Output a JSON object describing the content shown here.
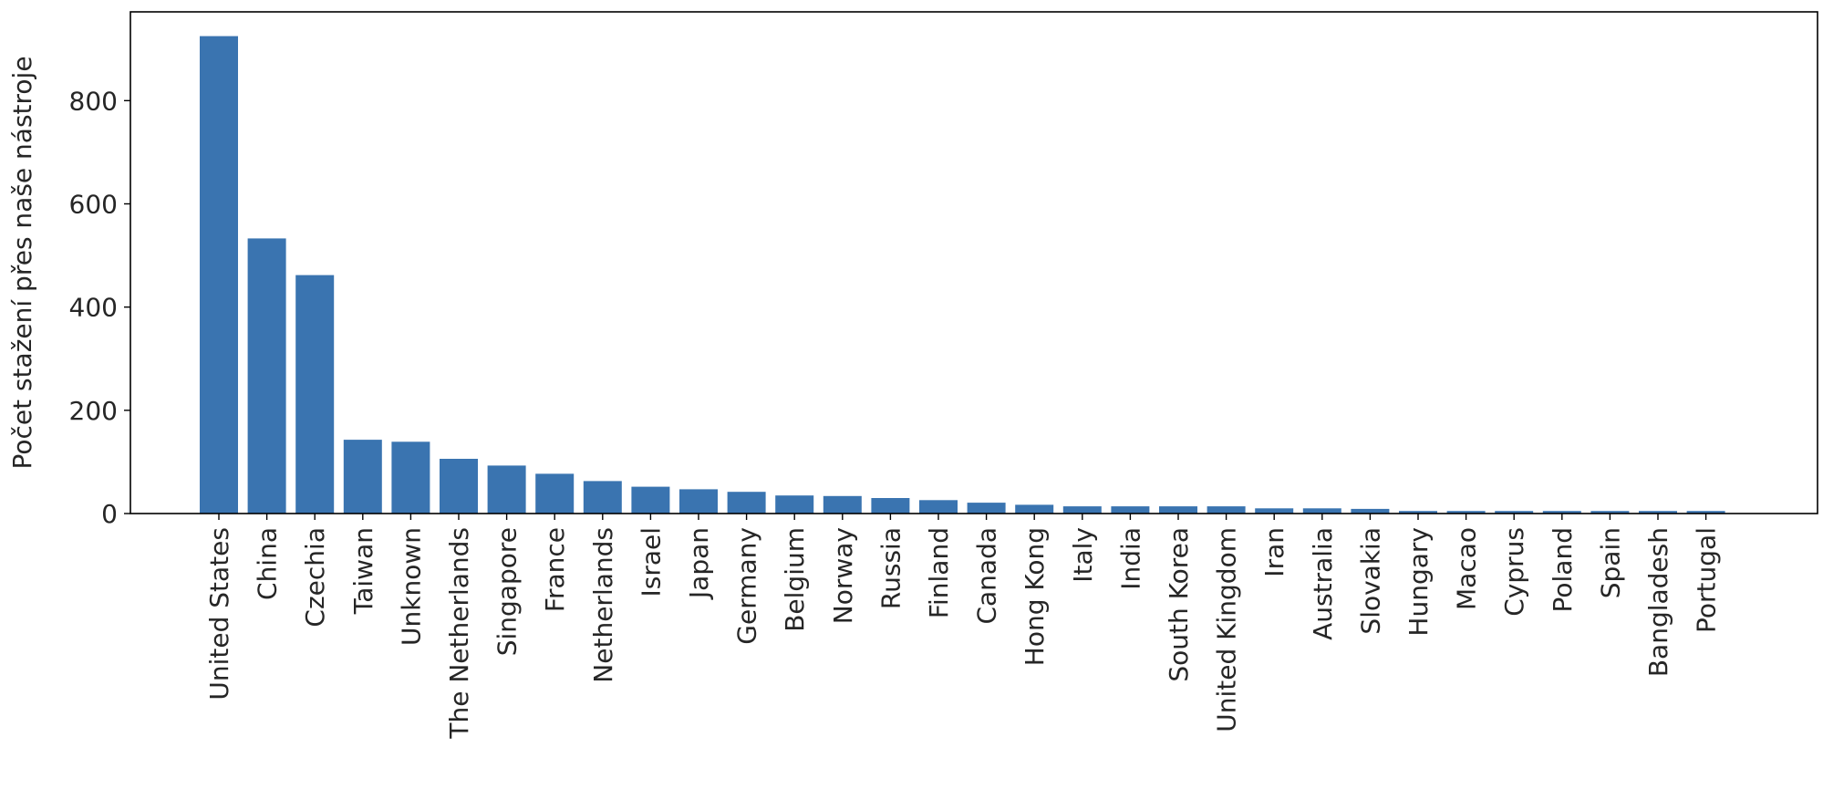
{
  "chart_data": {
    "type": "bar",
    "title": "",
    "xlabel": "",
    "ylabel": "Počet stažení přes naše nástroje",
    "categories": [
      "United States",
      "China",
      "Czechia",
      "Taiwan",
      "Unknown",
      "The Netherlands",
      "Singapore",
      "France",
      "Netherlands",
      "Israel",
      "Japan",
      "Germany",
      "Belgium",
      "Norway",
      "Russia",
      "Finland",
      "Canada",
      "Hong Kong",
      "Italy",
      "India",
      "South Korea",
      "United Kingdom",
      "Iran",
      "Australia",
      "Slovakia",
      "Hungary",
      "Macao",
      "Cyprus",
      "Poland",
      "Spain",
      "Bangladesh",
      "Portugal"
    ],
    "values": [
      925,
      533,
      462,
      143,
      139,
      106,
      93,
      77,
      63,
      52,
      47,
      42,
      35,
      34,
      30,
      26,
      21,
      17,
      14,
      14,
      14,
      14,
      10,
      10,
      9,
      5,
      5,
      5,
      5,
      5,
      5,
      5
    ],
    "ylim": [
      0,
      972
    ],
    "yticks": [
      0,
      200,
      400,
      600,
      800
    ],
    "grid": false,
    "bar_color": "#3a74b0"
  }
}
